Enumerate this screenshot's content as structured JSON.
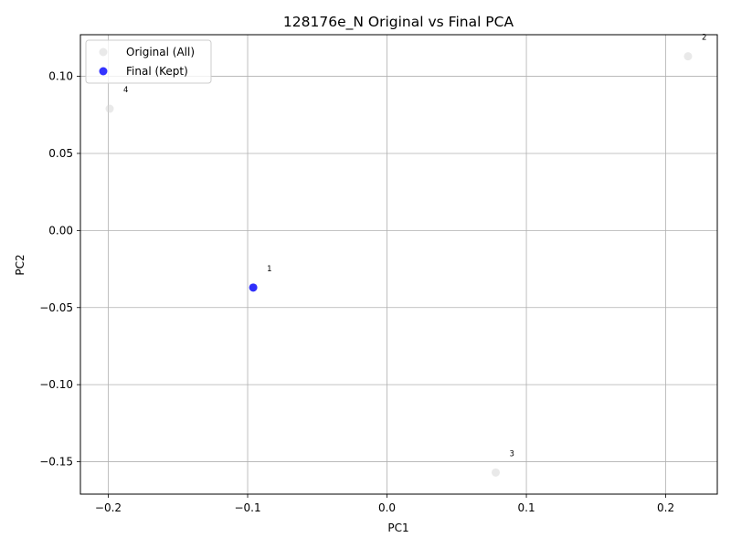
{
  "chart_data": {
    "type": "scatter",
    "title": "128176e_N Original vs Final PCA",
    "xlabel": "PC1",
    "ylabel": "PC2",
    "xlim": [
      -0.22,
      0.237
    ],
    "ylim": [
      -0.171,
      0.127
    ],
    "xticks": [
      -0.2,
      -0.1,
      0.0,
      0.1,
      0.2
    ],
    "xtick_labels": [
      "−0.2",
      "−0.1",
      "0.0",
      "0.1",
      "0.2"
    ],
    "yticks": [
      -0.15,
      -0.1,
      -0.05,
      0.0,
      0.05,
      0.1
    ],
    "ytick_labels": [
      "−0.15",
      "−0.10",
      "−0.05",
      "0.00",
      "0.05",
      "0.10"
    ],
    "grid": true,
    "legend_position": "top-left",
    "series": [
      {
        "name": "Original (All)",
        "color": "#d3d3d3",
        "opacity": 0.5,
        "points": [
          {
            "x": -0.096,
            "y": -0.037,
            "label": "1"
          },
          {
            "x": 0.216,
            "y": 0.113,
            "label": "2"
          },
          {
            "x": 0.078,
            "y": -0.157,
            "label": "3"
          },
          {
            "x": -0.199,
            "y": 0.079,
            "label": "4"
          }
        ]
      },
      {
        "name": "Final (Kept)",
        "color": "#0000ff",
        "opacity": 0.8,
        "points": [
          {
            "x": -0.096,
            "y": -0.037,
            "label": ""
          }
        ]
      }
    ]
  }
}
